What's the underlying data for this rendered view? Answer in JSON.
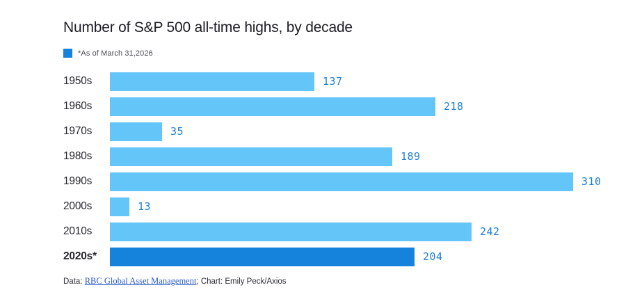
{
  "chart_data": {
    "type": "bar",
    "orientation": "horizontal",
    "title": "Number of S&P 500 all-time highs, by decade",
    "legend_note": "*As of March 31,2026",
    "categories": [
      "1950s",
      "1960s",
      "1970s",
      "1980s",
      "1990s",
      "2000s",
      "2010s",
      "2020s*"
    ],
    "values": [
      137,
      218,
      35,
      189,
      310,
      13,
      242,
      204
    ],
    "highlight_index": 7,
    "xlim": [
      0,
      310
    ],
    "grid": false,
    "legend_position": "top-left",
    "colors": {
      "bar": "#63c5f8",
      "highlight": "#1583db",
      "value_label": "#1f7fd6",
      "title_text": "#1d1d25",
      "category_text": "#28282f"
    }
  },
  "footer": {
    "prefix": "Data: ",
    "link": "RBC Global Asset Management",
    "suffix": "; Chart: Emily Peck/Axios"
  }
}
